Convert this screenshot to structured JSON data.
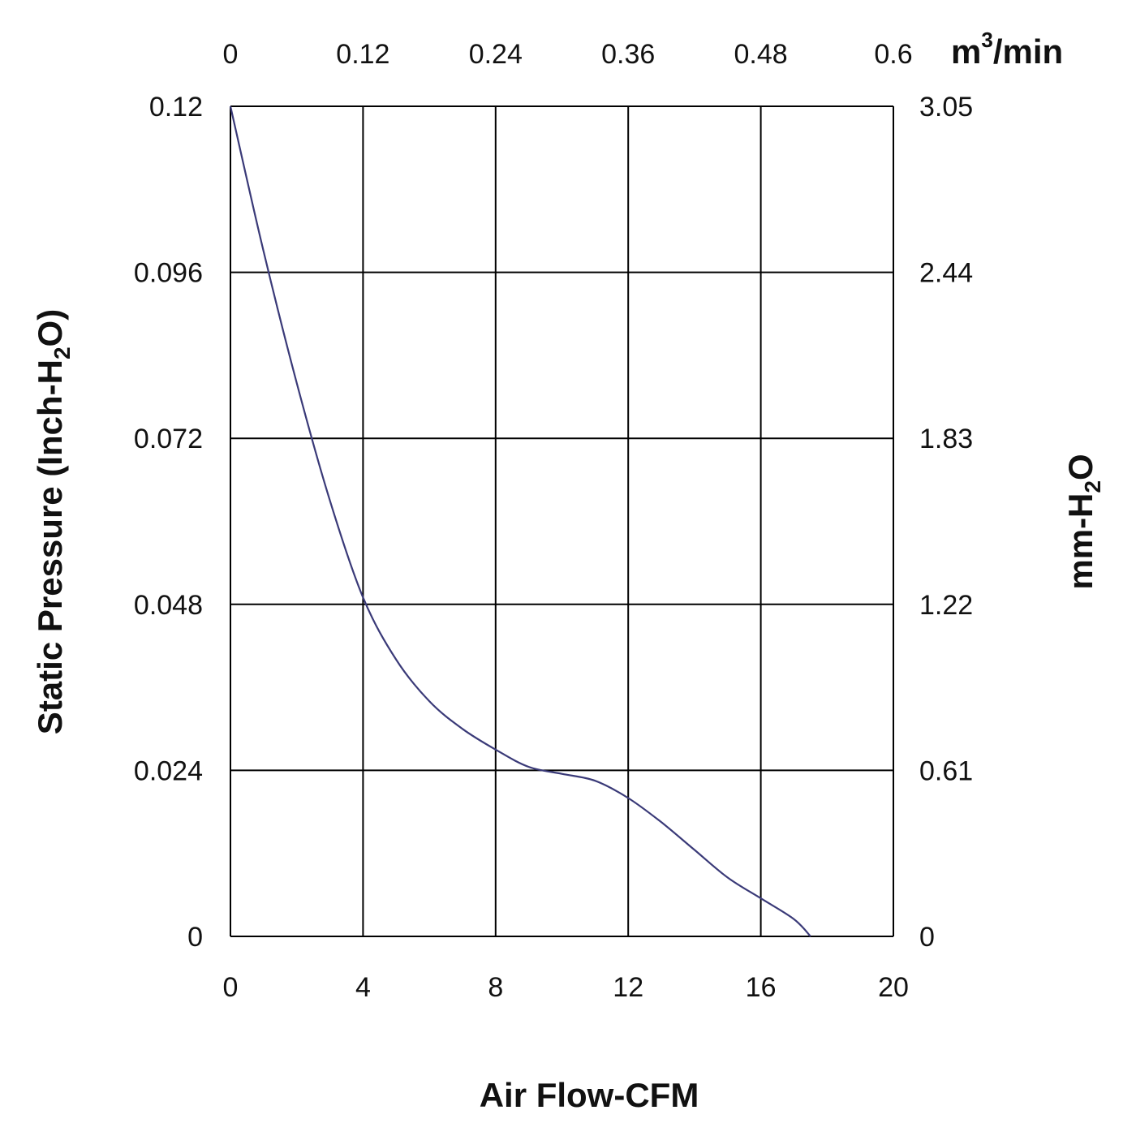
{
  "chart_data": {
    "type": "line",
    "title": "",
    "xlabel": "Air Flow-CFM",
    "x2label": {
      "main": "m",
      "sup": "3",
      "rest": "/min"
    },
    "ylabel": {
      "prefix": "Static Pressure (Inch-H",
      "sub": "2",
      "suffix": "O)"
    },
    "y2label": {
      "prefix": "mm-H",
      "sub": "2",
      "suffix": "O"
    },
    "xlim": [
      0,
      20
    ],
    "ylim": [
      0,
      0.12
    ],
    "x_ticks": [
      "0",
      "4",
      "8",
      "12",
      "16",
      "20"
    ],
    "x2_ticks": [
      "0",
      "0.12",
      "0.24",
      "0.36",
      "0.48",
      "0.6"
    ],
    "y_ticks": [
      "0",
      "0.024",
      "0.048",
      "0.072",
      "0.096",
      "0.12"
    ],
    "y2_ticks": [
      "0",
      "0.61",
      "1.22",
      "1.83",
      "2.44",
      "3.05"
    ],
    "grid": true,
    "line_color": "#3a3a78",
    "series": [
      {
        "x": [
          0,
          1,
          2,
          3,
          4,
          5,
          6,
          7,
          8,
          9,
          10,
          11,
          12,
          13,
          14,
          15,
          16,
          17,
          17.5
        ],
        "y": [
          0.12,
          0.099,
          0.08,
          0.063,
          0.049,
          0.04,
          0.034,
          0.03,
          0.027,
          0.0245,
          0.0235,
          0.0225,
          0.02,
          0.0165,
          0.0125,
          0.0085,
          0.0055,
          0.0025,
          0
        ]
      }
    ]
  }
}
